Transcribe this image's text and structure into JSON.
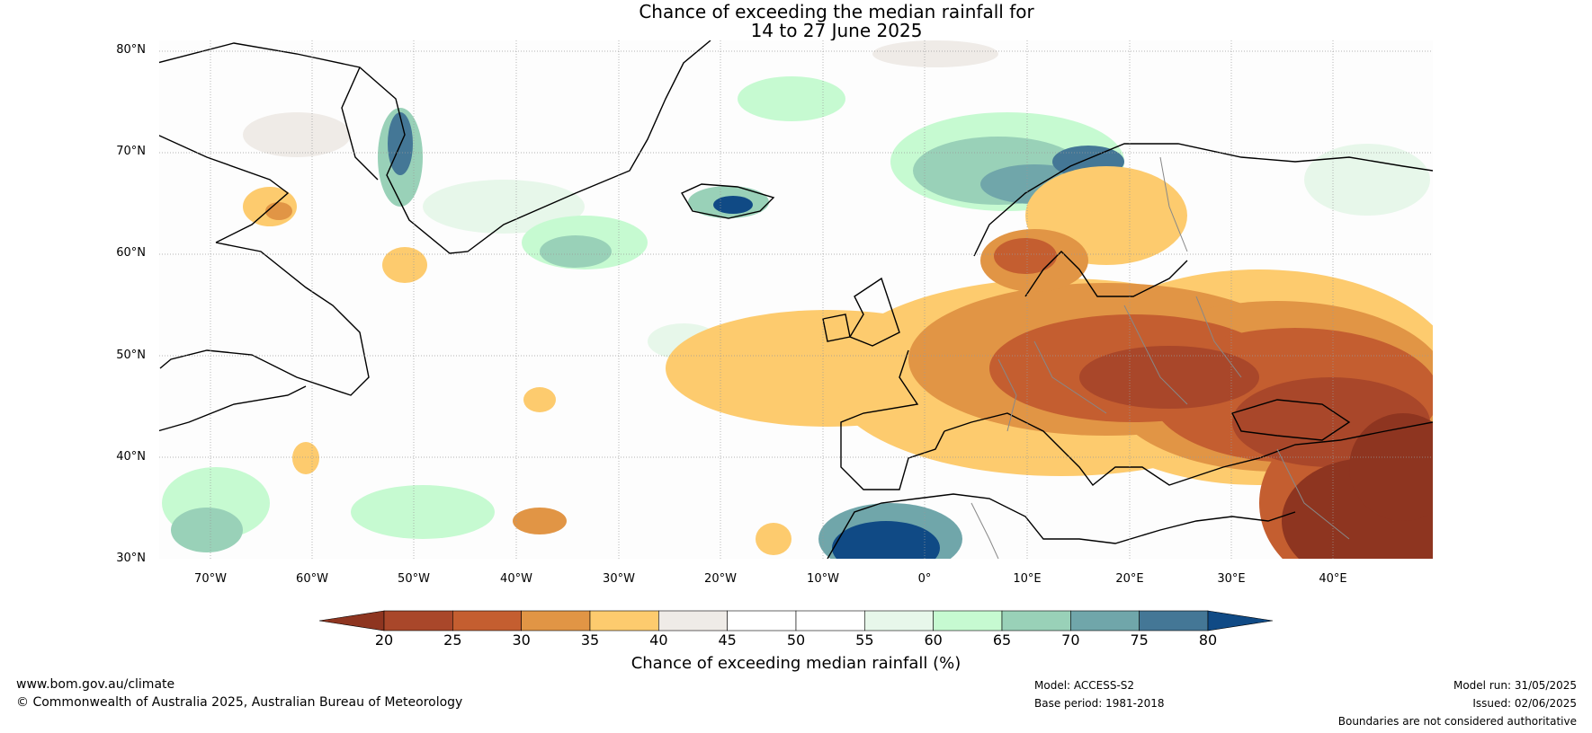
{
  "title": {
    "line1": "Chance of exceeding the median rainfall for",
    "line2": "14 to 27 June 2025"
  },
  "map": {
    "lat_labels": [
      "80°N",
      "70°N",
      "60°N",
      "50°N",
      "40°N",
      "30°N"
    ],
    "lon_labels": [
      "70°W",
      "60°W",
      "50°W",
      "40°W",
      "30°W",
      "20°W",
      "10°W",
      "0°",
      "10°E",
      "20°E",
      "30°E",
      "40°E"
    ]
  },
  "legend": {
    "ticks": [
      "20",
      "25",
      "30",
      "35",
      "40",
      "45",
      "50",
      "55",
      "60",
      "65",
      "70",
      "75",
      "80"
    ],
    "colors": [
      "#8e3520",
      "#a9472a",
      "#c45e30",
      "#e19545",
      "#fdcb6e",
      "#efebe7",
      "#ffffff",
      "#ffffff",
      "#e7f7ea",
      "#c6fad1",
      "#99d1b8",
      "#70a6aa",
      "#447796",
      "#104a85"
    ],
    "label": "Chance of exceeding median rainfall (%)"
  },
  "footer": {
    "website": "www.bom.gov.au/climate",
    "copyright": "© Commonwealth of Australia 2025, Australian Bureau of Meteorology",
    "model": "Model: ACCESS-S2",
    "base_period": "Base period: 1981-2018",
    "model_run": "Model run: 31/05/2025",
    "issued": "Issued: 02/06/2025",
    "disclaimer": "Boundaries are not considered authoritative"
  }
}
